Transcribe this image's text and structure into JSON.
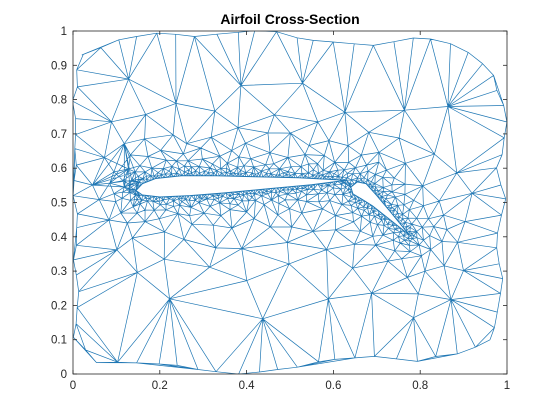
{
  "chart_data": {
    "type": "mesh",
    "title": "Airfoil Cross-Section",
    "xlabel": "",
    "ylabel": "",
    "xlim": [
      0,
      1
    ],
    "ylim": [
      0,
      1
    ],
    "xticks": [
      0,
      0.2,
      0.4,
      0.6,
      0.8,
      1
    ],
    "yticks": [
      0,
      0.1,
      0.2,
      0.3,
      0.4,
      0.5,
      0.6,
      0.7,
      0.8,
      0.9,
      1
    ],
    "xtick_labels": [
      "0",
      "0.2",
      "0.4",
      "0.6",
      "0.8",
      "1"
    ],
    "ytick_labels": [
      "0",
      "0.1",
      "0.2",
      "0.3",
      "0.4",
      "0.5",
      "0.6",
      "0.7",
      "0.8",
      "0.9",
      "1"
    ],
    "grid": false,
    "line_color": "#1f77b4",
    "main_airfoil": {
      "leading_edge": [
        0.145,
        0.535
      ],
      "trailing_edge": [
        0.63,
        0.565
      ],
      "upper_surface": [
        [
          0.145,
          0.535
        ],
        [
          0.16,
          0.555
        ],
        [
          0.19,
          0.57
        ],
        [
          0.25,
          0.578
        ],
        [
          0.33,
          0.578
        ],
        [
          0.42,
          0.575
        ],
        [
          0.52,
          0.572
        ],
        [
          0.63,
          0.565
        ]
      ],
      "lower_surface": [
        [
          0.145,
          0.535
        ],
        [
          0.16,
          0.522
        ],
        [
          0.2,
          0.516
        ],
        [
          0.27,
          0.52
        ],
        [
          0.35,
          0.528
        ],
        [
          0.45,
          0.54
        ],
        [
          0.55,
          0.552
        ],
        [
          0.63,
          0.565
        ]
      ]
    },
    "flap": {
      "leading_edge": [
        0.64,
        0.545
      ],
      "trailing_edge": [
        0.775,
        0.405
      ],
      "upper_surface": [
        [
          0.64,
          0.545
        ],
        [
          0.655,
          0.56
        ],
        [
          0.675,
          0.555
        ],
        [
          0.7,
          0.52
        ],
        [
          0.73,
          0.475
        ],
        [
          0.775,
          0.405
        ]
      ],
      "lower_surface": [
        [
          0.64,
          0.545
        ],
        [
          0.645,
          0.525
        ],
        [
          0.665,
          0.51
        ],
        [
          0.69,
          0.49
        ],
        [
          0.72,
          0.46
        ],
        [
          0.775,
          0.405
        ]
      ]
    }
  }
}
